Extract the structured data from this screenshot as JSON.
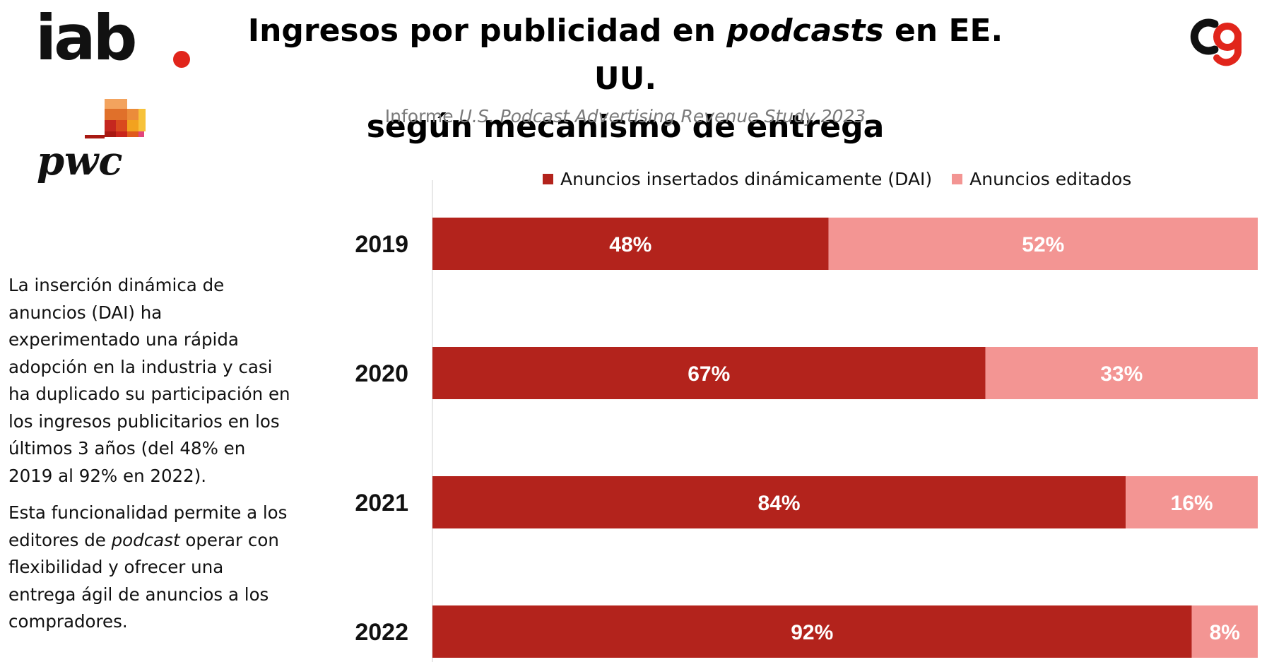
{
  "header": {
    "title_line1_pre": "Ingresos por publicidad en ",
    "title_line1_em": "podcasts",
    "title_line1_post": " en EE. UU.",
    "title_line2": "según mecanismo de entrega",
    "subtitle_pre": "Informe ",
    "subtitle_em": "U.S. Podcast Advertising Revenue Study 2023"
  },
  "logos": {
    "iab_text": "iab",
    "pwc_text": "pwc",
    "iab_dot_color": "#e1251b"
  },
  "side_text": {
    "p1": "La inserción dinámica de anuncios (DAI) ha experimentado una rápida adopción en la industria y casi ha duplicado su participación en los ingresos publicitarios en los últimos 3 años (del 48% en 2019 al 92% en 2022).",
    "p2_pre": "Esta funcionalidad permite a los editores de ",
    "p2_em": "podcast",
    "p2_post": " operar con flexibilidad y ofrecer una entrega ágil de anuncios a los compradores."
  },
  "chart_data": {
    "type": "bar",
    "orientation": "horizontal",
    "stacked": true,
    "categories": [
      "2019",
      "2020",
      "2021",
      "2022"
    ],
    "series": [
      {
        "name": "Anuncios insertados dinámicamente (DAI)",
        "values": [
          48,
          67,
          84,
          92
        ],
        "color": "#b3231c"
      },
      {
        "name": "Anuncios editados",
        "values": [
          52,
          33,
          16,
          8
        ],
        "color": "#f39593"
      }
    ],
    "value_suffix": "%",
    "xlim": [
      0,
      100
    ],
    "legend_position": "top",
    "grid": false
  }
}
